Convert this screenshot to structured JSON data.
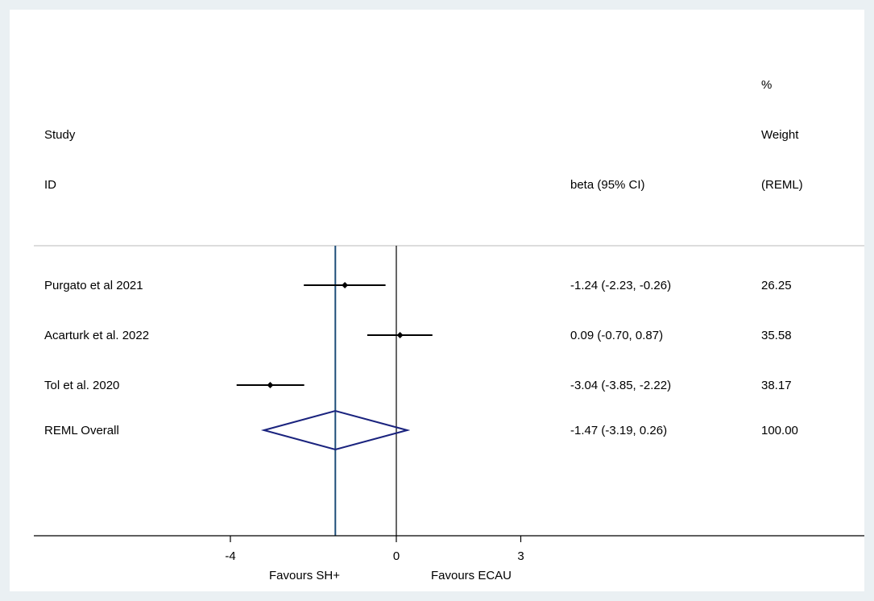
{
  "chart_data": {
    "type": "forest",
    "header": {
      "study_line1": "Study",
      "study_line2": "ID",
      "effect_label": "beta (95% CI)",
      "weight_line1": "%",
      "weight_line2": "Weight",
      "weight_line3": "(REML)"
    },
    "studies": [
      {
        "label": "Purgato et al 2021",
        "estimate": -1.24,
        "lower": -2.23,
        "upper": -0.26,
        "ci_text": "-1.24 (-2.23, -0.26)",
        "weight": "26.25"
      },
      {
        "label": "Acarturk et al. 2022",
        "estimate": 0.09,
        "lower": -0.7,
        "upper": 0.87,
        "ci_text": "0.09 (-0.70, 0.87)",
        "weight": "35.58"
      },
      {
        "label": "Tol et al. 2020",
        "estimate": -3.04,
        "lower": -3.85,
        "upper": -2.22,
        "ci_text": "-3.04 (-3.85, -2.22)",
        "weight": "38.17"
      }
    ],
    "overall": {
      "label": "REML Overall",
      "estimate": -1.47,
      "lower": -3.19,
      "upper": 0.26,
      "ci_text": "-1.47 (-3.19, 0.26)",
      "weight": "100.00"
    },
    "x_ticks": [
      "-4",
      "0",
      "3"
    ],
    "x_tick_values": [
      -4,
      0,
      3
    ],
    "favours_left": "Favours SH+",
    "favours_right": "Favours ECAU",
    "null_value": 0,
    "overall_line_color": "#1f4e79",
    "diamond_color": "#1a237e",
    "line_color": "#000000"
  }
}
